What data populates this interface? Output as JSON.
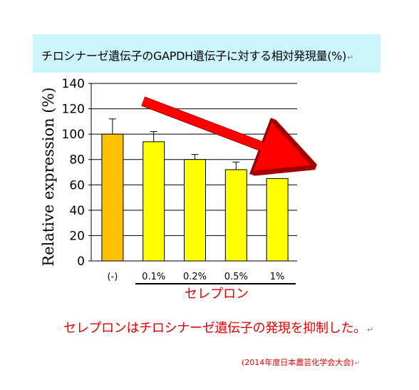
{
  "title": "チロシナーゼ遺伝子のGAPDH遺伝子に対する相対発現量(%)",
  "para_mark": "↵",
  "conclusion": "セレプロンはチロシナーゼ遺伝子の発現を抑制した。",
  "source": "(2014年度日本農芸化学会大会)",
  "chart_data": {
    "type": "bar",
    "ylabel": "Relative expression (%)",
    "xlabel": "セレプロン",
    "categories": [
      "(-)",
      "0.1%",
      "0.2%",
      "0.5%",
      "1%"
    ],
    "values": [
      100,
      94,
      80,
      72,
      65
    ],
    "error_upper": [
      112,
      102,
      84,
      78,
      65
    ],
    "bar_colors": [
      "#ffc000",
      "#ffff00",
      "#ffff00",
      "#ffff00",
      "#ffff00"
    ],
    "ylim": [
      0,
      140
    ],
    "yticks": [
      0,
      20,
      40,
      60,
      80,
      100,
      120,
      140
    ],
    "grid": true,
    "xlabel_color": "#e30000",
    "arrow_color": "#ff0000",
    "annotation": "arrow pointing downward from 0.1% to 1%"
  }
}
